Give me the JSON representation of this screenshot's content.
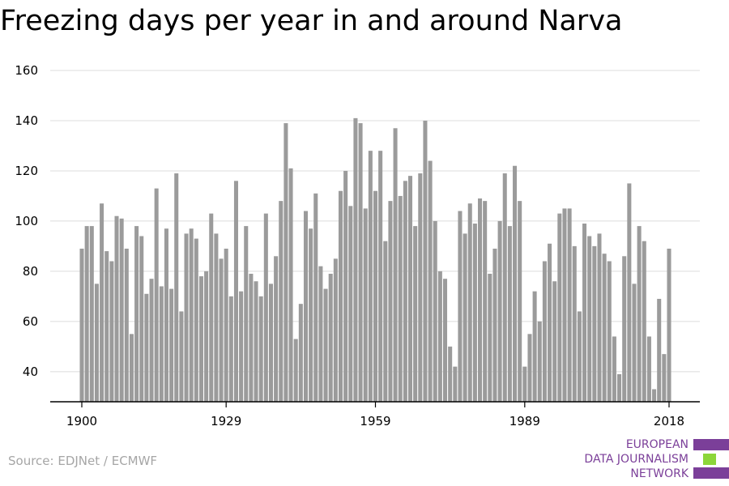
{
  "title": "Freezing days per year in and around Narva",
  "source": "Source: EDJNet / ECMWF",
  "logo": {
    "lines": [
      "EUROPEAN",
      "DATA JOURNALISM",
      "NETWORK"
    ],
    "colors": [
      "#7b3f99",
      "#8cd63a",
      "#7b3f99"
    ]
  },
  "chart_data": {
    "type": "bar",
    "title": "Freezing days per year in and around Narva",
    "xlabel": "",
    "ylabel": "",
    "bar_color": "#9b9b9b",
    "ylim": [
      28,
      160
    ],
    "yticks": [
      40,
      60,
      80,
      100,
      120,
      140,
      160
    ],
    "xticks": [
      1900,
      1929,
      1959,
      1989,
      2018
    ],
    "grid": true,
    "x": [
      1900,
      1901,
      1902,
      1903,
      1904,
      1905,
      1906,
      1907,
      1908,
      1909,
      1910,
      1911,
      1912,
      1913,
      1914,
      1915,
      1916,
      1917,
      1918,
      1919,
      1920,
      1921,
      1922,
      1923,
      1924,
      1925,
      1926,
      1927,
      1928,
      1929,
      1930,
      1931,
      1932,
      1933,
      1934,
      1935,
      1936,
      1937,
      1938,
      1939,
      1940,
      1941,
      1942,
      1943,
      1944,
      1945,
      1946,
      1947,
      1948,
      1949,
      1950,
      1951,
      1952,
      1953,
      1954,
      1955,
      1956,
      1957,
      1958,
      1959,
      1960,
      1961,
      1962,
      1963,
      1964,
      1965,
      1966,
      1967,
      1968,
      1969,
      1970,
      1971,
      1972,
      1973,
      1974,
      1975,
      1976,
      1977,
      1978,
      1979,
      1980,
      1981,
      1982,
      1983,
      1984,
      1985,
      1986,
      1987,
      1988,
      1989,
      1990,
      1991,
      1992,
      1993,
      1994,
      1995,
      1996,
      1997,
      1998,
      1999,
      2000,
      2001,
      2002,
      2003,
      2004,
      2005,
      2006,
      2007,
      2008,
      2009,
      2010,
      2011,
      2012,
      2013,
      2014,
      2015,
      2016,
      2017,
      2018
    ],
    "values": [
      89,
      98,
      98,
      75,
      107,
      88,
      84,
      102,
      101,
      89,
      55,
      98,
      94,
      71,
      77,
      113,
      74,
      97,
      73,
      119,
      64,
      95,
      97,
      93,
      78,
      80,
      103,
      95,
      85,
      89,
      70,
      116,
      72,
      98,
      79,
      76,
      70,
      103,
      75,
      86,
      108,
      139,
      121,
      53,
      67,
      104,
      97,
      111,
      82,
      73,
      79,
      85,
      112,
      120,
      106,
      141,
      139,
      105,
      128,
      112,
      128,
      92,
      108,
      137,
      110,
      116,
      118,
      98,
      119,
      140,
      124,
      100,
      80,
      77,
      50,
      42,
      104,
      95,
      107,
      99,
      109,
      108,
      79,
      89,
      100,
      119,
      98,
      122,
      108,
      42,
      55,
      72,
      60,
      84,
      91,
      76,
      103,
      105,
      105,
      90,
      64,
      99,
      94,
      90,
      95,
      87,
      84,
      54,
      39,
      86,
      115,
      75,
      98,
      92,
      54,
      33,
      69,
      47,
      89
    ]
  }
}
